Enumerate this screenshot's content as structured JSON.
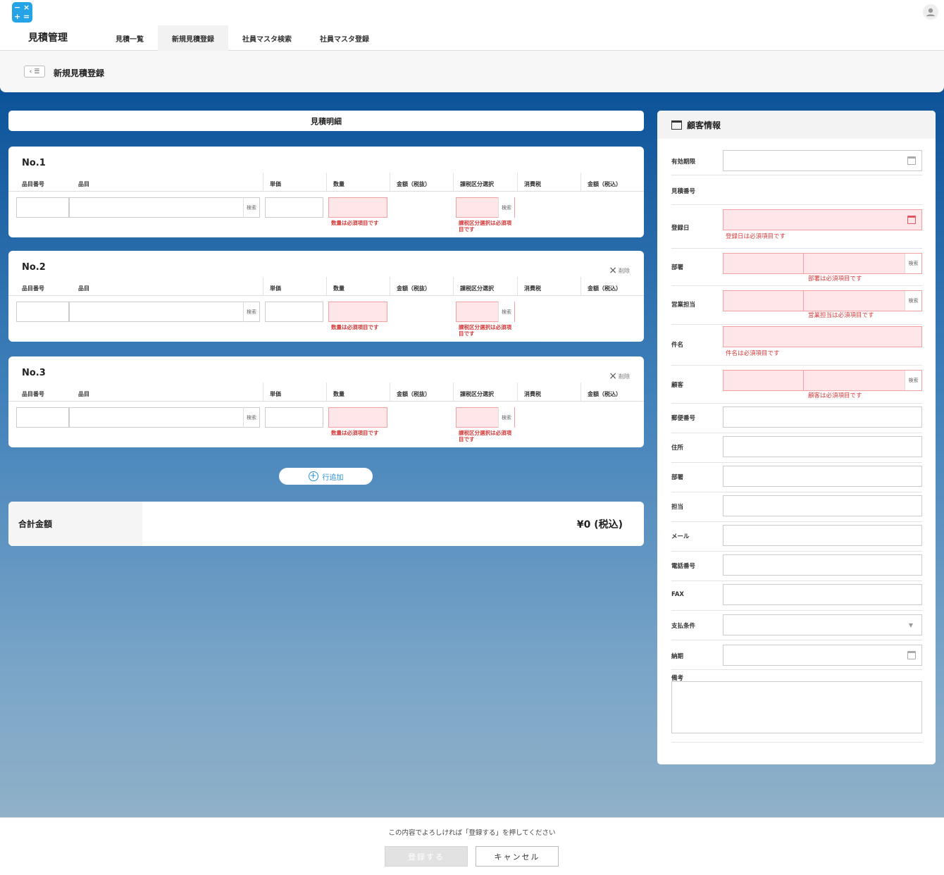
{
  "header": {
    "app_title": "見積管理",
    "tabs": [
      {
        "label": "見積一覧",
        "active": false
      },
      {
        "label": "新規見積登録",
        "active": true
      },
      {
        "label": "社員マスタ検索",
        "active": false
      },
      {
        "label": "社員マスタ登録",
        "active": false
      }
    ]
  },
  "subheader": {
    "page_title": "新規見積登録"
  },
  "detail": {
    "section_title": "見積明細",
    "columns": [
      "品目番号",
      "品目",
      "単価",
      "数量",
      "金額（税抜）",
      "課税区分選択",
      "消費税",
      "金額（税込）"
    ],
    "search_label": "検索",
    "delete_label": "削除",
    "rows": [
      {
        "no": "No.1",
        "qty_error": "数量は必須項目です",
        "tax_error": "課税区分選択は必須項目です"
      },
      {
        "no": "No.2",
        "qty_error": "数量は必須項目です",
        "tax_error": "課税区分選択は必須項目です"
      },
      {
        "no": "No.3",
        "qty_error": "数量は必須項目です",
        "tax_error": "課税区分選択は必須項目です"
      }
    ],
    "add_row_label": "行追加"
  },
  "total": {
    "label": "合計金額",
    "value": "¥0 (税込)"
  },
  "customer": {
    "title": "顧客情報",
    "search_label": "検索",
    "fields": {
      "valid_until": "有効期限",
      "estimate_no": "見積番号",
      "reg_date": "登録日",
      "reg_date_error": "登録日は必須項目です",
      "dept": "部署",
      "dept_error": "部署は必須項目です",
      "sales_rep": "営業担当",
      "sales_rep_error": "営業担当は必須項目です",
      "subject": "件名",
      "subject_error": "件名は必須項目です",
      "client": "顧客",
      "client_error": "顧客は必須項目です",
      "postal": "郵便番号",
      "address": "住所",
      "client_dept": "部署",
      "contact": "担当",
      "email": "メール",
      "phone": "電話番号",
      "fax": "FAX",
      "payment": "支払条件",
      "delivery": "納期",
      "notes": "備考"
    }
  },
  "footer": {
    "message": "この内容でよろしければ「登録する」を押してください",
    "register": "登録する",
    "cancel": "キャンセル"
  }
}
